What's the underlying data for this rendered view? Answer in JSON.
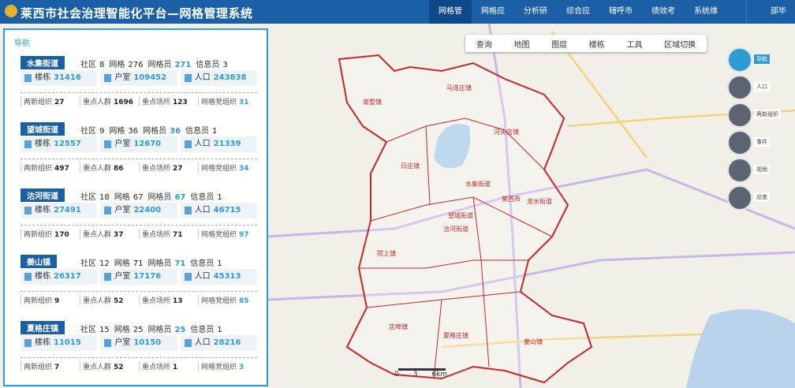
{
  "header": {
    "title": "莱西市社会治理智能化平台—网格管理系统",
    "nav": [
      "网格管",
      "网格应",
      "分析研",
      "综合应",
      "辖呼市",
      "绩效考",
      "系统维"
    ],
    "user": "邵毕"
  },
  "panel": {
    "title": "导航",
    "cards": [
      {
        "name": "水集街道",
        "top": [
          {
            "label": "社区",
            "value": "8"
          },
          {
            "label": "网格",
            "value": "276"
          },
          {
            "label": "网格员",
            "value": "271"
          },
          {
            "label": "信息员",
            "value": "3"
          }
        ],
        "mid": [
          {
            "label": "楼栋",
            "value": "31416"
          },
          {
            "label": "户室",
            "value": "109452"
          },
          {
            "label": "人口",
            "value": "243838"
          }
        ],
        "bottom": [
          {
            "label": "两新组织",
            "value": "27"
          },
          {
            "label": "重点人群",
            "value": "1696"
          },
          {
            "label": "重点场所",
            "value": "123"
          },
          {
            "label": "网格党组织",
            "value": "31"
          }
        ]
      },
      {
        "name": "望城街道",
        "top": [
          {
            "label": "社区",
            "value": "9"
          },
          {
            "label": "网格",
            "value": "36"
          },
          {
            "label": "网格员",
            "value": "36"
          },
          {
            "label": "信息员",
            "value": "1"
          }
        ],
        "mid": [
          {
            "label": "楼栋",
            "value": "12557"
          },
          {
            "label": "户室",
            "value": "12670"
          },
          {
            "label": "人口",
            "value": "21339"
          }
        ],
        "bottom": [
          {
            "label": "两新组织",
            "value": "497"
          },
          {
            "label": "重点人群",
            "value": "86"
          },
          {
            "label": "重点场所",
            "value": "27"
          },
          {
            "label": "网格党组织",
            "value": "34"
          }
        ]
      },
      {
        "name": "沽河街道",
        "top": [
          {
            "label": "社区",
            "value": "18"
          },
          {
            "label": "网格",
            "value": "67"
          },
          {
            "label": "网格员",
            "value": "67"
          },
          {
            "label": "信息员",
            "value": "1"
          }
        ],
        "mid": [
          {
            "label": "楼栋",
            "value": "27491"
          },
          {
            "label": "户室",
            "value": "22400"
          },
          {
            "label": "人口",
            "value": "46715"
          }
        ],
        "bottom": [
          {
            "label": "两新组织",
            "value": "170"
          },
          {
            "label": "重点人群",
            "value": "37"
          },
          {
            "label": "重点场所",
            "value": "71"
          },
          {
            "label": "网格党组织",
            "value": "97"
          }
        ]
      },
      {
        "name": "姜山镇",
        "top": [
          {
            "label": "社区",
            "value": "12"
          },
          {
            "label": "网格",
            "value": "71"
          },
          {
            "label": "网格员",
            "value": "71"
          },
          {
            "label": "信息员",
            "value": "1"
          }
        ],
        "mid": [
          {
            "label": "楼栋",
            "value": "26317"
          },
          {
            "label": "户室",
            "value": "17176"
          },
          {
            "label": "人口",
            "value": "45313"
          }
        ],
        "bottom": [
          {
            "label": "两新组织",
            "value": "9"
          },
          {
            "label": "重点人群",
            "value": "52"
          },
          {
            "label": "重点场所",
            "value": "13"
          },
          {
            "label": "网格党组织",
            "value": "85"
          }
        ]
      },
      {
        "name": "夏格庄镇",
        "top": [
          {
            "label": "社区",
            "value": "15"
          },
          {
            "label": "网格",
            "value": "25"
          },
          {
            "label": "网格员",
            "value": "25"
          },
          {
            "label": "信息员",
            "value": "1"
          }
        ],
        "mid": [
          {
            "label": "楼栋",
            "value": "11015"
          },
          {
            "label": "户室",
            "value": "10150"
          },
          {
            "label": "人口",
            "value": "28216"
          }
        ],
        "bottom": [
          {
            "label": "两新组织",
            "value": "7"
          },
          {
            "label": "重点人群",
            "value": "52"
          },
          {
            "label": "重点场所",
            "value": "1"
          },
          {
            "label": "网格党组织",
            "value": "3"
          }
        ]
      }
    ]
  },
  "toolbar": [
    "查询",
    "地图",
    "图层",
    "楼栋",
    "工具",
    "区域切换"
  ],
  "side_tools": [
    "导航",
    "人口",
    "两新组织",
    "事件",
    "视频",
    "巡查"
  ],
  "map": {
    "labels": [
      "马连庄镇",
      "南墅镇",
      "河头店镇",
      "日庄镇",
      "水集街道",
      "龙水街道",
      "望城街道",
      "沽河街道",
      "院上镇",
      "店埠镇",
      "夏格庄镇",
      "姜山镇",
      "莱西市"
    ],
    "scale": [
      "0",
      "3",
      "6km"
    ]
  }
}
